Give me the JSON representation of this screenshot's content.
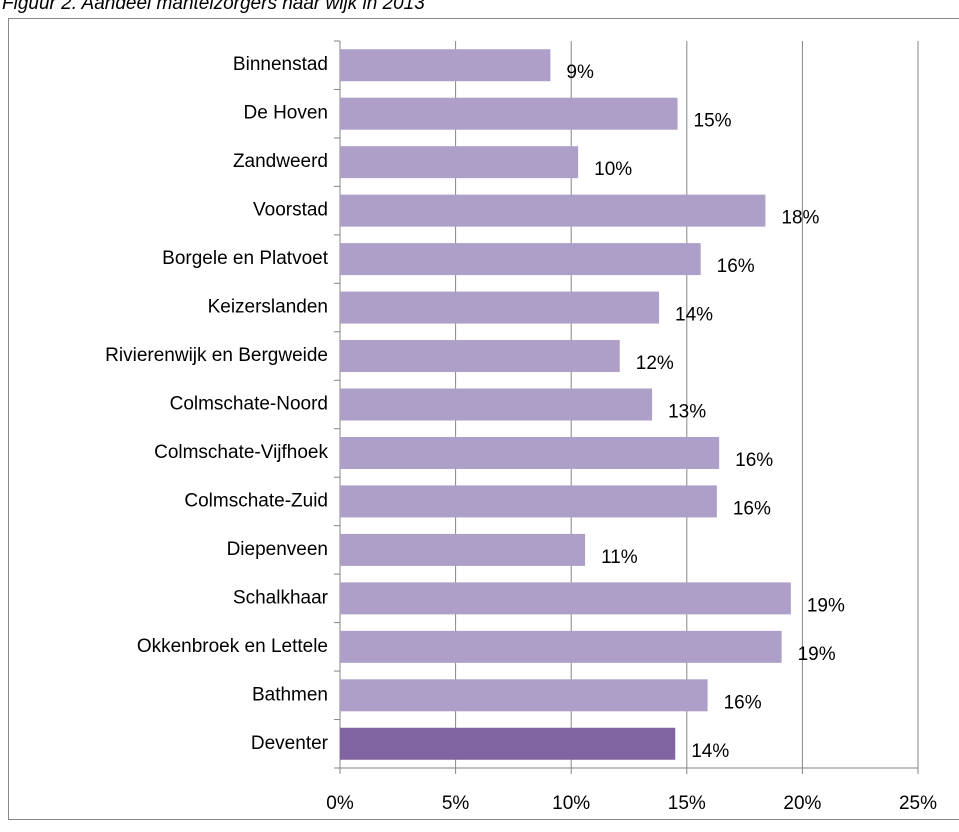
{
  "chart_data": {
    "type": "bar",
    "orientation": "horizontal",
    "title": "Figuur 2. Aandeel mantelzorgers naar wijk in 2013",
    "categories": [
      "Binnenstad",
      "De Hoven",
      "Zandweerd",
      "Voorstad",
      "Borgele en Platvoet",
      "Keizerslanden",
      "Rivierenwijk en Bergweide",
      "Colmschate-Noord",
      "Colmschate-Vijfhoek",
      "Colmschate-Zuid",
      "Diepenveen",
      "Schalkhaar",
      "Okkenbroek en Lettele",
      "Bathmen",
      "Deventer"
    ],
    "values": [
      9.1,
      14.6,
      10.3,
      18.4,
      15.6,
      13.8,
      12.1,
      13.5,
      16.4,
      16.3,
      10.6,
      19.5,
      19.1,
      15.9,
      14.5
    ],
    "value_labels": [
      "9%",
      "15%",
      "10%",
      "18%",
      "16%",
      "14%",
      "12%",
      "13%",
      "16%",
      "16%",
      "11%",
      "19%",
      "19%",
      "16%",
      "14%"
    ],
    "colors": [
      "#ae9fc8",
      "#ae9fc8",
      "#ae9fc8",
      "#ae9fc8",
      "#ae9fc8",
      "#ae9fc8",
      "#ae9fc8",
      "#ae9fc8",
      "#ae9fc8",
      "#ae9fc8",
      "#ae9fc8",
      "#ae9fc8",
      "#ae9fc8",
      "#ae9fc8",
      "#8064a2"
    ],
    "xlim": [
      0,
      25
    ],
    "xticks": [
      {
        "value": 0,
        "label": "0%"
      },
      {
        "value": 5,
        "label": "5%"
      },
      {
        "value": 10,
        "label": "10%"
      },
      {
        "value": 15,
        "label": "15%"
      },
      {
        "value": 20,
        "label": "20%"
      },
      {
        "value": 25,
        "label": "25%"
      }
    ],
    "grid": true
  }
}
